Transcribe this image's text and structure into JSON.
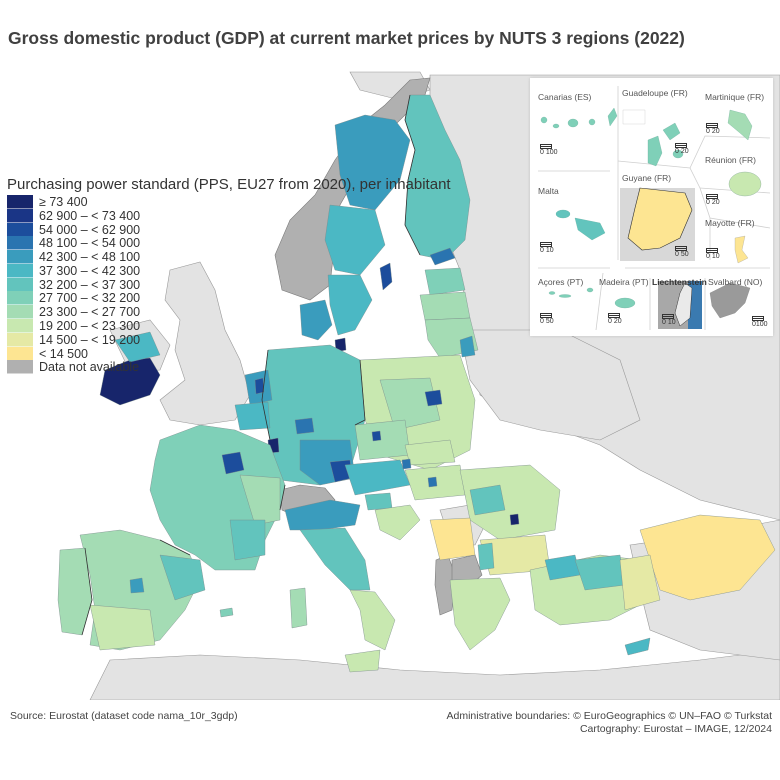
{
  "title": "Gross domestic product (GDP) at current market prices by NUTS 3 regions (2022)",
  "legend": {
    "title": "Purchasing power standard (PPS, EU27 from 2020), per inhabitant",
    "classes": [
      {
        "label": "≥ 73 400",
        "color": "#17256b"
      },
      {
        "label": "62 900 – < 73 400",
        "color": "#1a3586"
      },
      {
        "label": "54 000 – < 62 900",
        "color": "#1c4d9c"
      },
      {
        "label": "48 100 – < 54 000",
        "color": "#2a74b0"
      },
      {
        "label": "42 300 – < 48 100",
        "color": "#3a9cbd"
      },
      {
        "label": "37 300 – < 42 300",
        "color": "#4bb8c4"
      },
      {
        "label": "32 200 – < 37 300",
        "color": "#62c4bd"
      },
      {
        "label": "27 700 – < 32 200",
        "color": "#7fd0b8"
      },
      {
        "label": "23 300 – < 27 700",
        "color": "#a4dcb4"
      },
      {
        "label": "19 200 – < 23 300",
        "color": "#c8e8b0"
      },
      {
        "label": "14 500 – < 19 200",
        "color": "#e5e9a5"
      },
      {
        "label": "< 14 500",
        "color": "#fde592"
      },
      {
        "label": "Data not available",
        "color": "#b0b0b0"
      }
    ]
  },
  "colors": {
    "non_eu_land": "#e3e3e3",
    "no_data": "#b0b0b0",
    "sea": "#ffffff",
    "border": "#333333"
  },
  "insets": {
    "canarias": {
      "label": "Canarias (ES)",
      "scale": "0   100"
    },
    "guadeloupe": {
      "label": "Guadeloupe (FR)",
      "scale": "0  20"
    },
    "martinique": {
      "label": "Martinique (FR)",
      "scale": "0  20"
    },
    "reunion": {
      "label": "Réunion (FR)",
      "scale": "0  20"
    },
    "malta": {
      "label": "Malta",
      "scale": "0   10"
    },
    "guyane": {
      "label": "Guyane (FR)",
      "scale": "0 50"
    },
    "mayotte": {
      "label": "Mayotte (FR)",
      "scale": "0 10"
    },
    "acores": {
      "label": "Açores (PT)",
      "scale": "0  50"
    },
    "madeira": {
      "label": "Madeira (PT)",
      "scale": "0  20"
    },
    "liechtenstein": {
      "label": "Liechtenstein",
      "scale": "0   10"
    },
    "svalbard": {
      "label": "Svalbard (NO)",
      "scale": "0100"
    }
  },
  "footer": {
    "source": "Source: Eurostat (dataset code nama_10r_3gdp)",
    "boundaries": "Administrative boundaries: © EuroGeographics © UN–FAO © Turkstat",
    "cartography": "Cartography: Eurostat – IMAGE, 12/2024"
  }
}
